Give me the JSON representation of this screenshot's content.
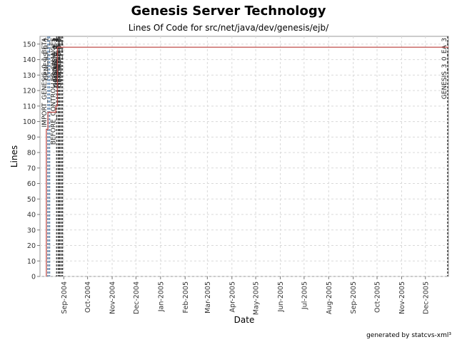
{
  "chart_data": {
    "type": "line",
    "title": "Genesis Server Technology",
    "subtitle": "Lines Of Code for src/net/java/dev/genesis/ejb/",
    "xlabel": "Date",
    "ylabel": "Lines",
    "ylim": [
      0,
      155
    ],
    "y_ticks": [
      0,
      10,
      20,
      30,
      40,
      50,
      60,
      70,
      80,
      90,
      100,
      110,
      120,
      130,
      140,
      150
    ],
    "xlim": [
      "2004-08-02",
      "2005-12-30"
    ],
    "x_ticks": [
      "Sep-2004",
      "Oct-2004",
      "Nov-2004",
      "Dec-2004",
      "Jan-2005",
      "Feb-2005",
      "Mar-2005",
      "Apr-2005",
      "May-2005",
      "Jun-2005",
      "Jul-2005",
      "Aug-2005",
      "Sep-2005",
      "Oct-2005",
      "Nov-2005",
      "Dec-2005"
    ],
    "grid": true,
    "series_color": "#c0504d",
    "series": [
      {
        "x": [
          "2004-08-10",
          "2004-08-10",
          "2004-08-12",
          "2004-08-12",
          "2004-08-22",
          "2004-08-22",
          "2004-08-24",
          "2004-08-24",
          "2005-12-30"
        ],
        "values": [
          0,
          95,
          95,
          106,
          106,
          110,
          110,
          148,
          148
        ]
      }
    ],
    "markers": [
      {
        "date": "2004-08-12",
        "label": "IMPORT_GENESIS_0_1_BETA",
        "color": "#5b7fa6"
      },
      {
        "date": "2004-08-13",
        "label": "GENESIS_0_1",
        "color": "#5b7fa6"
      },
      {
        "date": "2004-08-23",
        "label": "BEFORE_CONTROLLER_CHANGES",
        "color": "#555555"
      },
      {
        "date": "2004-08-24",
        "label": "GENESIS_0_2",
        "color": "#555555"
      },
      {
        "date": "2004-08-24",
        "label": "GENESIS_0_2_1",
        "color": "#555555"
      },
      {
        "date": "2004-08-24",
        "label": "GENESIS_0_2_2",
        "color": "#555555"
      },
      {
        "date": "2004-08-25",
        "label": "GENESIS_0_3",
        "color": "#555555"
      },
      {
        "date": "2004-08-25",
        "label": "GENESIS_0_3_1",
        "color": "#555555"
      },
      {
        "date": "2005-12-29",
        "label": "GENESIS_3_0_EA_3",
        "color": "#555555"
      }
    ],
    "footer": "generated by statcvs-xml³"
  }
}
